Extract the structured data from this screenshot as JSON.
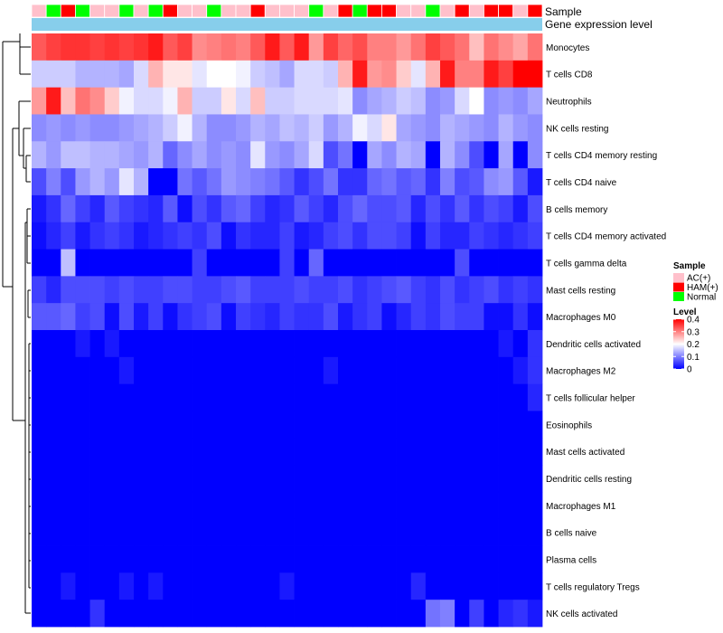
{
  "chart_data": {
    "type": "heatmap",
    "annotation_rows": [
      "Sample",
      "Gene expression level"
    ],
    "rows": [
      "Monocytes",
      "T cells CD8",
      "Neutrophils",
      "NK cells resting",
      "T cells CD4 memory resting",
      "T cells CD4 naive",
      "B cells memory",
      "T cells CD4 memory activated",
      "T cells gamma delta",
      "Mast cells resting",
      "Macrophages M0",
      "Dendritic cells activated",
      "Macrophages M2",
      "T cells follicular helper",
      "Eosinophils",
      "Mast cells activated",
      "Dendritic cells resting",
      "Macrophages M1",
      "B cells naive",
      "Plasma cells",
      "T cells regulatory  Tregs",
      "NK cells activated"
    ],
    "sample_groups": [
      "AC",
      "Normal",
      "HAM",
      "Normal",
      "AC",
      "AC",
      "Normal",
      "AC",
      "Normal",
      "HAM",
      "AC",
      "AC",
      "Normal",
      "AC",
      "AC",
      "HAM",
      "AC",
      "AC",
      "AC",
      "Normal",
      "AC",
      "HAM",
      "Normal",
      "HAM",
      "HAM",
      "AC",
      "AC",
      "Normal",
      "AC",
      "HAM",
      "AC",
      "HAM",
      "HAM",
      "AC",
      "HAM"
    ],
    "values": [
      [
        0.33,
        0.35,
        0.36,
        0.36,
        0.35,
        0.36,
        0.35,
        0.36,
        0.38,
        0.33,
        0.35,
        0.29,
        0.3,
        0.31,
        0.3,
        0.33,
        0.38,
        0.33,
        0.38,
        0.28,
        0.35,
        0.32,
        0.34,
        0.3,
        0.3,
        0.28,
        0.31,
        0.35,
        0.33,
        0.31,
        0.25,
        0.31,
        0.29,
        0.27,
        0.31
      ],
      [
        0.16,
        0.16,
        0.16,
        0.14,
        0.14,
        0.14,
        0.13,
        0.17,
        0.26,
        0.22,
        0.22,
        0.18,
        0.2,
        0.2,
        0.19,
        0.16,
        0.15,
        0.13,
        0.17,
        0.17,
        0.16,
        0.26,
        0.38,
        0.28,
        0.29,
        0.24,
        0.18,
        0.26,
        0.38,
        0.3,
        0.3,
        0.38,
        0.35,
        0.4,
        0.4
      ],
      [
        0.28,
        0.38,
        0.25,
        0.31,
        0.29,
        0.24,
        0.19,
        0.17,
        0.17,
        0.19,
        0.26,
        0.16,
        0.16,
        0.22,
        0.17,
        0.25,
        0.16,
        0.16,
        0.17,
        0.17,
        0.17,
        0.18,
        0.11,
        0.13,
        0.14,
        0.16,
        0.15,
        0.11,
        0.12,
        0.17,
        0.2,
        0.11,
        0.12,
        0.11,
        0.13
      ],
      [
        0.11,
        0.12,
        0.11,
        0.12,
        0.11,
        0.11,
        0.12,
        0.13,
        0.14,
        0.16,
        0.19,
        0.14,
        0.11,
        0.11,
        0.12,
        0.14,
        0.13,
        0.15,
        0.14,
        0.16,
        0.12,
        0.14,
        0.19,
        0.17,
        0.22,
        0.13,
        0.12,
        0.11,
        0.14,
        0.13,
        0.12,
        0.11,
        0.14,
        0.12,
        0.11
      ],
      [
        0.14,
        0.12,
        0.15,
        0.15,
        0.14,
        0.14,
        0.13,
        0.12,
        0.14,
        0.08,
        0.11,
        0.13,
        0.11,
        0.12,
        0.11,
        0.18,
        0.12,
        0.11,
        0.13,
        0.17,
        0.06,
        0.09,
        0,
        0.13,
        0.11,
        0.14,
        0.13,
        0,
        0.14,
        0.11,
        0.06,
        0,
        0.13,
        0,
        0.11
      ],
      [
        0.06,
        0.1,
        0.06,
        0.12,
        0.14,
        0.12,
        0.18,
        0.14,
        0,
        0,
        0.09,
        0.07,
        0.09,
        0.12,
        0.11,
        0.1,
        0.09,
        0.07,
        0.04,
        0.06,
        0.09,
        0.04,
        0.04,
        0.08,
        0.09,
        0.07,
        0.08,
        0.04,
        0.1,
        0.06,
        0.07,
        0.11,
        0.12,
        0.07,
        0.02
      ],
      [
        0.02,
        0.04,
        0.08,
        0.05,
        0.03,
        0.07,
        0.05,
        0.04,
        0.03,
        0.07,
        0.01,
        0.06,
        0.04,
        0.07,
        0.08,
        0.05,
        0.03,
        0.04,
        0.07,
        0.05,
        0.03,
        0.06,
        0.08,
        0.06,
        0.06,
        0.07,
        0.03,
        0.06,
        0.04,
        0.07,
        0.04,
        0.06,
        0.05,
        0.02,
        0.06
      ],
      [
        0.01,
        0.03,
        0.05,
        0.02,
        0.04,
        0.05,
        0.04,
        0.02,
        0.03,
        0.04,
        0.05,
        0.04,
        0.06,
        0.01,
        0.04,
        0.03,
        0.03,
        0.05,
        0.02,
        0.03,
        0.05,
        0.06,
        0.04,
        0.06,
        0.06,
        0.05,
        0.01,
        0.05,
        0.03,
        0.03,
        0.05,
        0.04,
        0.03,
        0.04,
        0.05
      ],
      [
        0,
        0,
        0.15,
        0,
        0,
        0,
        0,
        0,
        0,
        0,
        0,
        0.05,
        0,
        0,
        0,
        0,
        0,
        0.05,
        0,
        0.08,
        0,
        0,
        0,
        0,
        0,
        0,
        0,
        0,
        0,
        0.06,
        0,
        0,
        0,
        0,
        0
      ],
      [
        0.05,
        0.03,
        0.06,
        0.06,
        0.06,
        0.05,
        0.06,
        0.05,
        0.05,
        0.06,
        0.06,
        0.05,
        0.05,
        0.06,
        0.07,
        0.05,
        0.05,
        0.05,
        0.06,
        0.05,
        0.05,
        0.06,
        0.04,
        0.05,
        0.06,
        0.07,
        0.05,
        0.04,
        0.06,
        0.04,
        0.05,
        0.06,
        0.04,
        0.05,
        0.04
      ],
      [
        0.07,
        0.07,
        0.08,
        0.05,
        0.06,
        0.01,
        0.06,
        0.02,
        0.05,
        0.01,
        0.04,
        0.05,
        0.06,
        0.01,
        0.05,
        0.04,
        0.03,
        0.05,
        0.04,
        0.04,
        0.06,
        0.02,
        0.04,
        0.05,
        0.01,
        0.03,
        0.05,
        0.04,
        0.06,
        0.05,
        0.05,
        0.01,
        0.01,
        0.04,
        0.01
      ],
      [
        0,
        0,
        0,
        0.02,
        0,
        0.02,
        0,
        0,
        0,
        0,
        0,
        0,
        0,
        0,
        0,
        0,
        0,
        0,
        0,
        0,
        0,
        0,
        0,
        0,
        0,
        0,
        0,
        0,
        0,
        0,
        0,
        0,
        0.02,
        0,
        0.04
      ],
      [
        0,
        0,
        0,
        0,
        0,
        0,
        0.02,
        0,
        0,
        0,
        0,
        0,
        0,
        0,
        0,
        0,
        0,
        0,
        0,
        0,
        0.02,
        0,
        0,
        0,
        0,
        0,
        0,
        0,
        0,
        0,
        0,
        0,
        0,
        0.02,
        0.04
      ],
      [
        0,
        0,
        0,
        0,
        0,
        0,
        0,
        0,
        0,
        0,
        0,
        0,
        0,
        0,
        0,
        0,
        0,
        0,
        0,
        0,
        0,
        0,
        0,
        0,
        0,
        0,
        0,
        0,
        0,
        0,
        0,
        0,
        0,
        0,
        0.03
      ],
      [
        0,
        0,
        0,
        0,
        0,
        0,
        0,
        0,
        0,
        0,
        0,
        0,
        0,
        0,
        0,
        0,
        0,
        0,
        0,
        0,
        0,
        0,
        0,
        0,
        0,
        0,
        0,
        0,
        0,
        0,
        0,
        0,
        0,
        0,
        0
      ],
      [
        0,
        0,
        0,
        0,
        0,
        0,
        0,
        0,
        0,
        0,
        0,
        0,
        0,
        0,
        0,
        0,
        0,
        0,
        0,
        0,
        0,
        0,
        0,
        0,
        0,
        0,
        0,
        0,
        0,
        0,
        0,
        0,
        0,
        0,
        0
      ],
      [
        0,
        0,
        0,
        0,
        0,
        0,
        0,
        0,
        0,
        0,
        0,
        0,
        0,
        0,
        0,
        0,
        0,
        0,
        0,
        0,
        0,
        0,
        0,
        0,
        0,
        0,
        0,
        0,
        0,
        0,
        0,
        0,
        0,
        0,
        0
      ],
      [
        0,
        0,
        0,
        0,
        0,
        0,
        0,
        0,
        0,
        0,
        0,
        0,
        0,
        0,
        0,
        0,
        0,
        0,
        0,
        0,
        0,
        0,
        0,
        0,
        0,
        0,
        0,
        0,
        0,
        0,
        0,
        0,
        0,
        0,
        0
      ],
      [
        0,
        0,
        0,
        0,
        0,
        0,
        0,
        0,
        0,
        0,
        0,
        0,
        0,
        0,
        0,
        0,
        0,
        0,
        0,
        0,
        0,
        0,
        0,
        0,
        0,
        0,
        0,
        0,
        0,
        0,
        0,
        0,
        0,
        0,
        0
      ],
      [
        0,
        0,
        0,
        0,
        0,
        0,
        0,
        0,
        0,
        0,
        0,
        0,
        0,
        0,
        0,
        0,
        0,
        0,
        0,
        0,
        0,
        0,
        0,
        0,
        0,
        0,
        0,
        0,
        0,
        0,
        0,
        0,
        0,
        0,
        0
      ],
      [
        0,
        0,
        0.02,
        0,
        0,
        0,
        0.02,
        0,
        0.02,
        0,
        0,
        0,
        0,
        0,
        0,
        0,
        0,
        0.02,
        0,
        0,
        0,
        0,
        0,
        0,
        0,
        0,
        0.03,
        0,
        0,
        0,
        0,
        0,
        0,
        0,
        0
      ],
      [
        0,
        0,
        0,
        0,
        0.04,
        0,
        0,
        0,
        0,
        0,
        0,
        0,
        0,
        0,
        0,
        0,
        0,
        0,
        0,
        0,
        0,
        0,
        0,
        0,
        0,
        0,
        0,
        0.09,
        0.1,
        0,
        0.05,
        0,
        0.03,
        0.04,
        0.02
      ]
    ],
    "legend": {
      "sample_title": "Sample",
      "sample_groups": [
        {
          "key": "AC",
          "label": "AC(+)",
          "color": "#ffc0cb"
        },
        {
          "key": "HAM",
          "label": "HAM(+)",
          "color": "#ff0000"
        },
        {
          "key": "Normal",
          "label": "Normal",
          "color": "#00ff00"
        }
      ],
      "level_title": "Level",
      "level_ticks": [
        "0.4",
        "0.3",
        "0.2",
        "0.1",
        "0"
      ],
      "level_range": [
        0,
        0.4
      ]
    },
    "colors": {
      "low": "#0000ff",
      "mid": "#ffffff",
      "high": "#ff0000",
      "gene_expression_bar": "#87ceeb",
      "grid": "#ffffff"
    }
  }
}
